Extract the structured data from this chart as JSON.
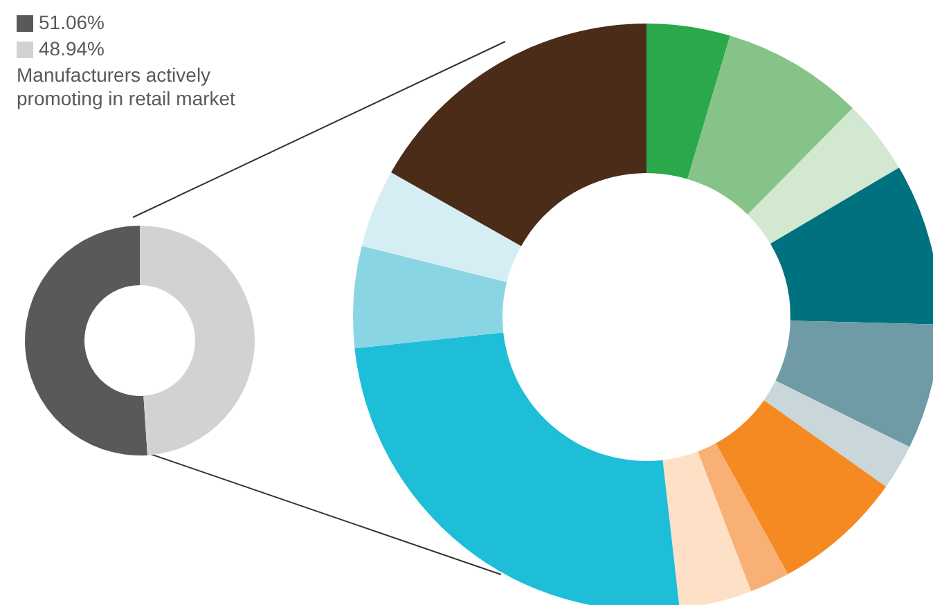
{
  "chart_data": [
    {
      "type": "donut",
      "categories": [
        "51.06%",
        "48.94%"
      ],
      "values": [
        51.06,
        48.94
      ],
      "colors": [
        "#58595b",
        "#d1d2d4"
      ],
      "legend": "top left",
      "annotations": [
        "Manufacturers actively promoting in retail market"
      ]
    },
    {
      "type": "donut",
      "categories": [
        null,
        null,
        null,
        null,
        null,
        null,
        null,
        null,
        null,
        null,
        null,
        null,
        null
      ],
      "values": [
        4.6,
        7.8,
        4.1,
        8.9,
        6.9,
        2.5,
        7.2,
        2.2,
        4.0,
        25.1,
        5.6,
        4.3,
        16.8
      ],
      "colors": [
        "#2aa84a",
        "#86c388",
        "#d2e8d0",
        "#00727f",
        "#6e9ba6",
        "#c9d6da",
        "#f58a23",
        "#f9b075",
        "#fde0c5",
        "#1ebed8",
        "#8ad5e3",
        "#d5eef4",
        "#4b2c19"
      ]
    }
  ]
}
